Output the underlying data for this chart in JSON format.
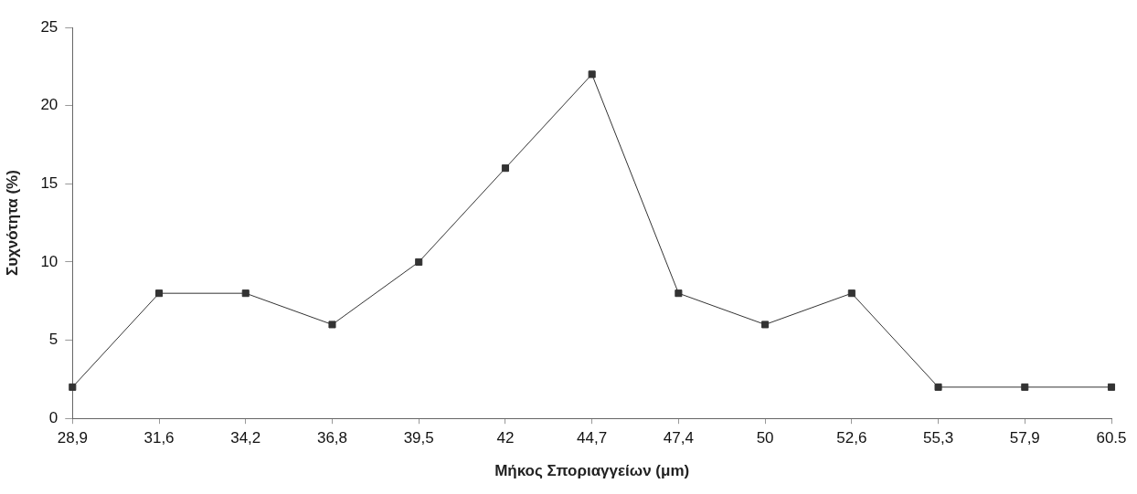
{
  "chart_data": {
    "type": "line",
    "xlabel": "Μήκος Σποριαγγείων (μm)",
    "ylabel": "Συχνότητα (%)",
    "categories": [
      "28,9",
      "31,6",
      "34,2",
      "36,8",
      "39,5",
      "42",
      "44,7",
      "47,4",
      "50",
      "52,6",
      "55,3",
      "57,9",
      "60.5"
    ],
    "values": [
      2,
      8,
      8,
      6,
      10,
      16,
      22,
      8,
      6,
      8,
      2,
      2,
      2
    ],
    "color": "#333333",
    "marker": "square",
    "line_style": "solid",
    "ylim": [
      0,
      25
    ],
    "yticks": [
      0,
      5,
      10,
      15,
      20,
      25
    ]
  }
}
